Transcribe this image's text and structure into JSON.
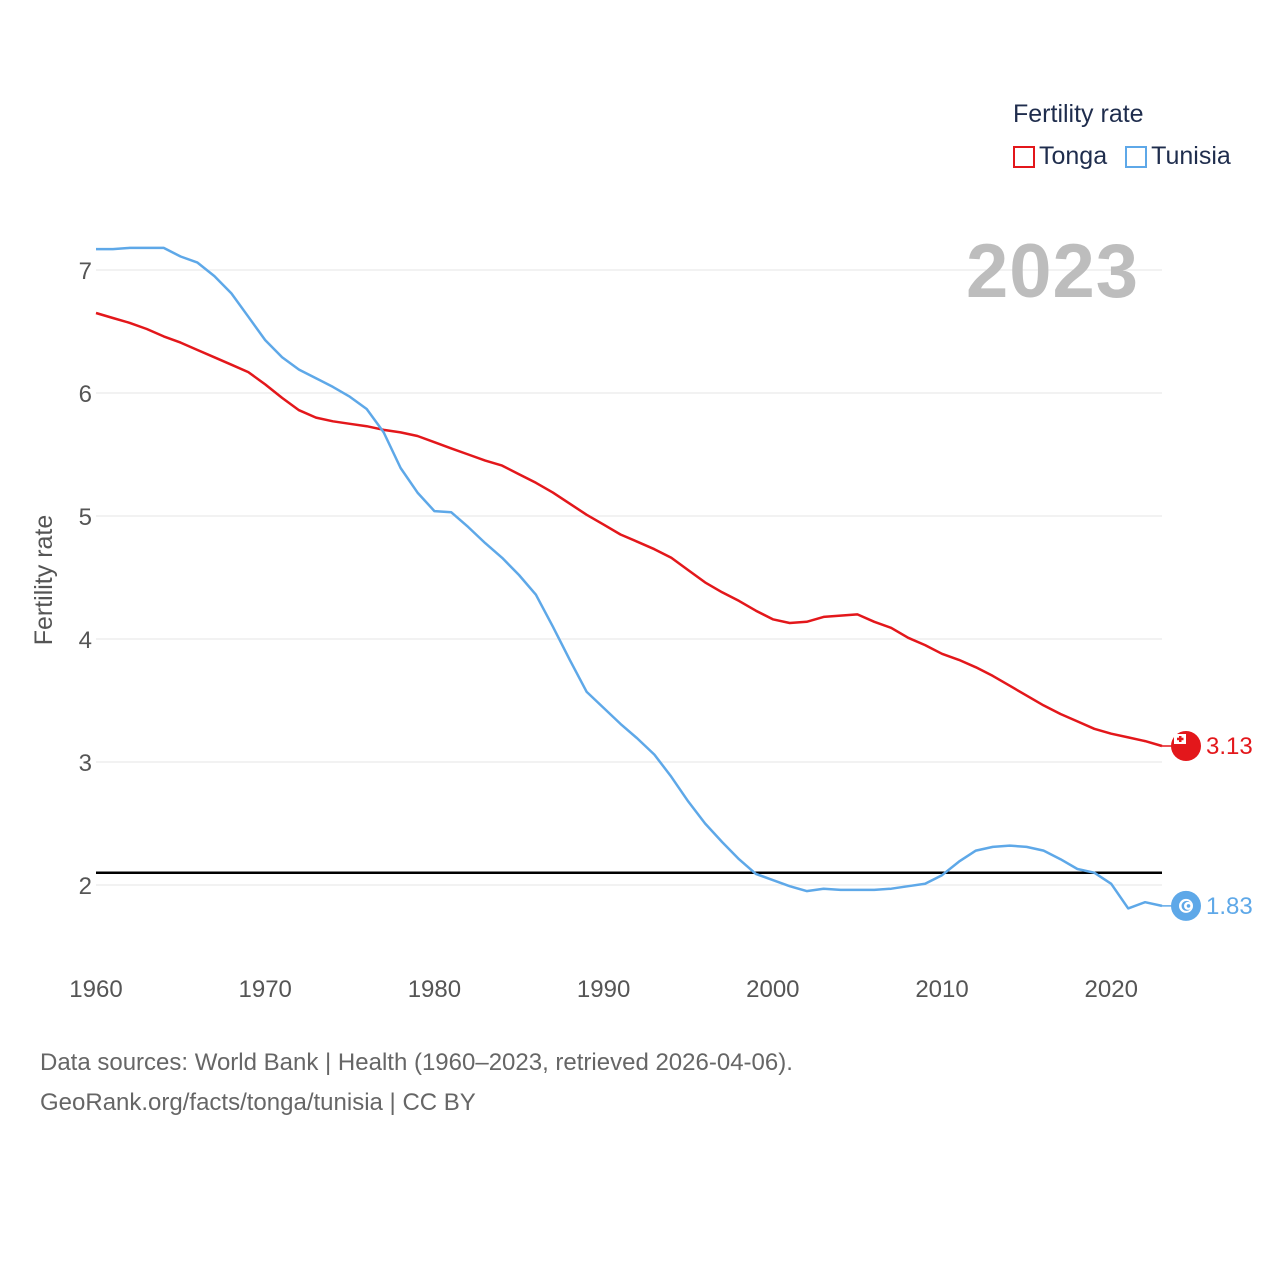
{
  "legend": {
    "title": "Fertility rate",
    "items": [
      {
        "label": "Tonga",
        "color": "#e3171b"
      },
      {
        "label": "Tunisia",
        "color": "#5ea8e8"
      }
    ]
  },
  "year_badge": "2023",
  "footer": {
    "line1": "Data sources: World Bank | Health (1960–2023, retrieved 2026-04-06).",
    "line2": "GeoRank.org/facts/tonga/tunisia | CC BY"
  },
  "chart_data": {
    "type": "line",
    "title": "Fertility rate",
    "xlabel": "",
    "ylabel": "Fertility rate",
    "xlim": [
      1960,
      2023
    ],
    "ylim": [
      1.4,
      7.6
    ],
    "x_ticks": [
      "1960",
      "1970",
      "1980",
      "1990",
      "2000",
      "2010",
      "2020"
    ],
    "y_ticks": [
      "2",
      "3",
      "4",
      "5",
      "6",
      "7"
    ],
    "grid": true,
    "reference_line": {
      "value": 2.1,
      "label": ""
    },
    "x": [
      1960,
      1961,
      1962,
      1963,
      1964,
      1965,
      1966,
      1967,
      1968,
      1969,
      1970,
      1971,
      1972,
      1973,
      1974,
      1975,
      1976,
      1977,
      1978,
      1979,
      1980,
      1981,
      1982,
      1983,
      1984,
      1985,
      1986,
      1987,
      1988,
      1989,
      1990,
      1991,
      1992,
      1993,
      1994,
      1995,
      1996,
      1997,
      1998,
      1999,
      2000,
      2001,
      2002,
      2003,
      2004,
      2005,
      2006,
      2007,
      2008,
      2009,
      2010,
      2011,
      2012,
      2013,
      2014,
      2015,
      2016,
      2017,
      2018,
      2019,
      2020,
      2021,
      2022,
      2023
    ],
    "series": [
      {
        "name": "Tonga",
        "color": "#e3171b",
        "end_label": "3.13",
        "values": [
          6.65,
          6.61,
          6.57,
          6.52,
          6.46,
          6.41,
          6.35,
          6.29,
          6.23,
          6.17,
          6.07,
          5.96,
          5.86,
          5.8,
          5.77,
          5.75,
          5.73,
          5.7,
          5.68,
          5.65,
          5.6,
          5.55,
          5.5,
          5.45,
          5.41,
          5.34,
          5.27,
          5.19,
          5.1,
          5.01,
          4.93,
          4.85,
          4.79,
          4.73,
          4.66,
          4.56,
          4.46,
          4.38,
          4.31,
          4.23,
          4.16,
          4.13,
          4.14,
          4.18,
          4.19,
          4.2,
          4.14,
          4.09,
          4.01,
          3.95,
          3.88,
          3.83,
          3.77,
          3.7,
          3.62,
          3.54,
          3.46,
          3.39,
          3.33,
          3.27,
          3.23,
          3.2,
          3.17,
          3.13
        ]
      },
      {
        "name": "Tunisia",
        "color": "#5ea8e8",
        "end_label": "1.83",
        "values": [
          7.17,
          7.17,
          7.18,
          7.18,
          7.18,
          7.11,
          7.06,
          6.95,
          6.81,
          6.62,
          6.43,
          6.29,
          6.19,
          6.12,
          6.05,
          5.97,
          5.87,
          5.68,
          5.39,
          5.19,
          5.04,
          5.03,
          4.91,
          4.78,
          4.66,
          4.52,
          4.36,
          4.1,
          3.83,
          3.57,
          3.44,
          3.31,
          3.19,
          3.06,
          2.88,
          2.68,
          2.5,
          2.35,
          2.21,
          2.09,
          2.04,
          1.99,
          1.95,
          1.97,
          1.96,
          1.96,
          1.96,
          1.97,
          1.99,
          2.01,
          2.08,
          2.19,
          2.28,
          2.31,
          2.32,
          2.31,
          2.28,
          2.21,
          2.13,
          2.1,
          2.01,
          1.81,
          1.86,
          1.83
        ]
      }
    ]
  }
}
